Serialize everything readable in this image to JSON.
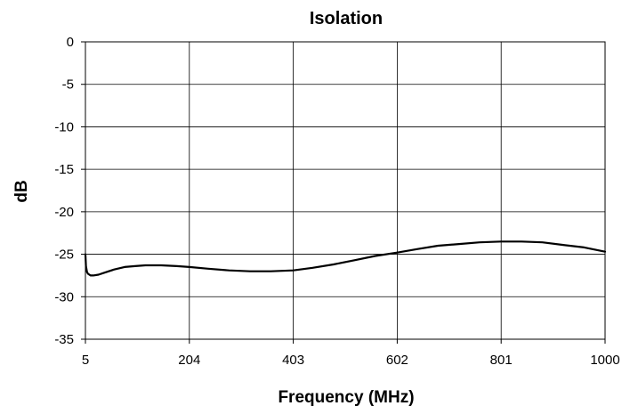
{
  "chart_data": {
    "type": "line",
    "title": "Isolation",
    "xlabel": "Frequency (MHz)",
    "ylabel": "dB",
    "xlim": [
      5,
      1000
    ],
    "ylim": [
      -35,
      0
    ],
    "xticks": [
      5,
      204,
      403,
      602,
      801,
      1000
    ],
    "xtick_labels": [
      "5",
      "204",
      "403",
      "602",
      "801",
      "1000"
    ],
    "yticks": [
      0,
      -5,
      -10,
      -15,
      -20,
      -25,
      -30,
      -35
    ],
    "ytick_labels": [
      "0",
      "-5",
      "-10",
      "-15",
      "-20",
      "-25",
      "-30",
      "-35"
    ],
    "grid": true,
    "series": [
      {
        "color": "#000000",
        "x": [
          5,
          6,
          8,
          10,
          15,
          20,
          30,
          40,
          60,
          80,
          100,
          120,
          150,
          180,
          204,
          240,
          280,
          320,
          360,
          403,
          440,
          480,
          520,
          560,
          602,
          640,
          680,
          720,
          760,
          801,
          840,
          880,
          920,
          960,
          1000
        ],
        "y": [
          -25.0,
          -26.4,
          -27.1,
          -27.3,
          -27.5,
          -27.5,
          -27.4,
          -27.2,
          -26.8,
          -26.5,
          -26.4,
          -26.3,
          -26.3,
          -26.4,
          -26.5,
          -26.7,
          -26.9,
          -27.0,
          -27.0,
          -26.9,
          -26.6,
          -26.2,
          -25.7,
          -25.2,
          -24.8,
          -24.4,
          -24.0,
          -23.8,
          -23.6,
          -23.5,
          -23.5,
          -23.6,
          -23.9,
          -24.2,
          -24.7
        ]
      }
    ]
  }
}
